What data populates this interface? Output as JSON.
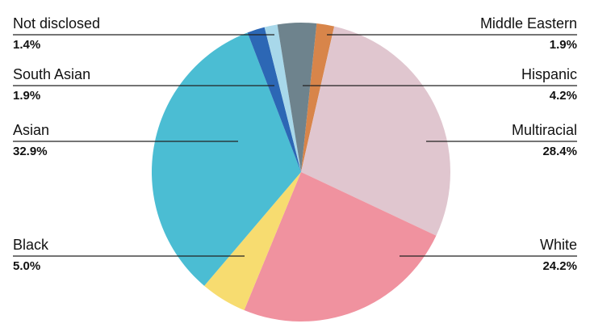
{
  "chart_data": {
    "type": "pie",
    "categories": [
      "Middle Eastern",
      "Multiracial",
      "White",
      "Black",
      "Asian",
      "South Asian",
      "Not disclosed",
      "Hispanic"
    ],
    "values": [
      1.9,
      28.4,
      24.2,
      5.0,
      32.9,
      1.9,
      1.4,
      4.2
    ],
    "value_labels": [
      "1.9%",
      "28.4%",
      "24.2%",
      "5.0%",
      "32.9%",
      "1.9%",
      "1.4%",
      "4.2%"
    ],
    "colors": [
      "#d8854a",
      "#e0c6cf",
      "#f0929f",
      "#f7dc70",
      "#4bbdd3",
      "#2c67b5",
      "#a8d8ea",
      "#6e838d"
    ]
  }
}
